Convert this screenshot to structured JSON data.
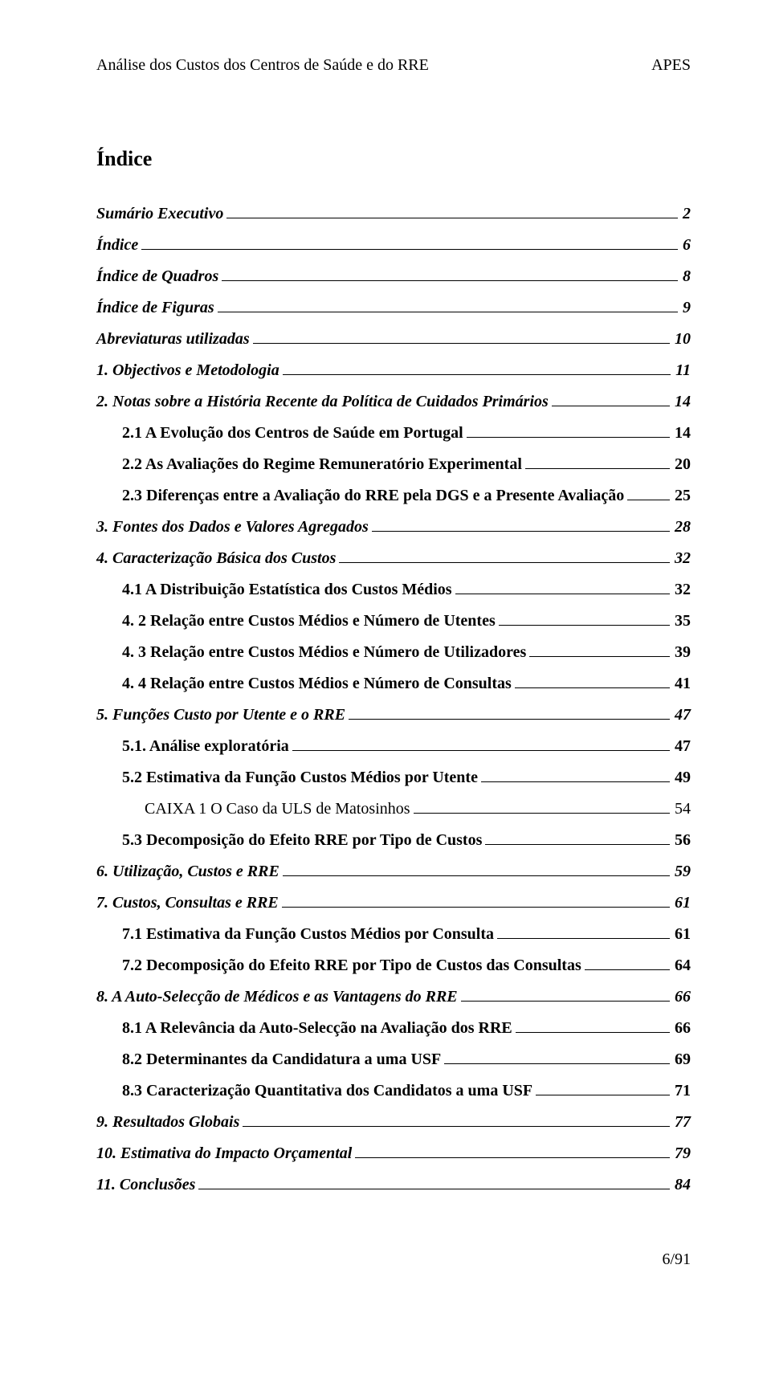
{
  "header": {
    "left": "Análise dos Custos dos Centros de Saúde e do RRE",
    "right": "APES"
  },
  "title": "Índice",
  "toc": [
    {
      "label": "Sumário Executivo",
      "page": "2",
      "style": "bolditalic",
      "indent": 0
    },
    {
      "label": "Índice",
      "page": "6",
      "style": "bolditalic",
      "indent": 0
    },
    {
      "label": "Índice de Quadros",
      "page": "8",
      "style": "bolditalic",
      "indent": 0
    },
    {
      "label": "Índice de Figuras",
      "page": "9",
      "style": "bolditalic",
      "indent": 0
    },
    {
      "label": "Abreviaturas utilizadas",
      "page": "10",
      "style": "bolditalic",
      "indent": 0
    },
    {
      "label": "1. Objectivos e Metodologia",
      "page": "11",
      "style": "bolditalic",
      "indent": 0
    },
    {
      "label": "2. Notas sobre a História Recente da Política de Cuidados Primários",
      "page": "14",
      "style": "bolditalic",
      "indent": 0
    },
    {
      "label": "2.1 A Evolução dos Centros de Saúde em Portugal",
      "page": "14",
      "style": "bold",
      "indent": 1
    },
    {
      "label": "2.2 As Avaliações do Regime Remuneratório Experimental",
      "page": "20",
      "style": "bold",
      "indent": 1
    },
    {
      "label": "2.3 Diferenças entre a Avaliação do RRE pela DGS e a Presente Avaliação",
      "page": "25",
      "style": "bold",
      "indent": 1
    },
    {
      "label": "3. Fontes dos Dados e Valores Agregados",
      "page": "28",
      "style": "bolditalic",
      "indent": 0
    },
    {
      "label": "4. Caracterização Básica dos Custos",
      "page": "32",
      "style": "bolditalic",
      "indent": 0
    },
    {
      "label": "4.1 A Distribuição Estatística dos Custos Médios",
      "page": "32",
      "style": "bold",
      "indent": 1
    },
    {
      "label": "4. 2 Relação entre  Custos Médios e Número de Utentes",
      "page": "35",
      "style": "bold",
      "indent": 1
    },
    {
      "label": "4. 3 Relação entre Custos Médios e Número de Utilizadores",
      "page": "39",
      "style": "bold",
      "indent": 1
    },
    {
      "label": "4. 4 Relação entre Custos Médios e Número de Consultas",
      "page": "41",
      "style": "bold",
      "indent": 1
    },
    {
      "label": "5. Funções Custo por Utente  e o RRE",
      "page": "47",
      "style": "bolditalic",
      "indent": 0
    },
    {
      "label": "5.1. Análise exploratória",
      "page": "47",
      "style": "bold",
      "indent": 1
    },
    {
      "label": "5.2 Estimativa da Função Custos Médios por Utente",
      "page": "49",
      "style": "bold",
      "indent": 1
    },
    {
      "label": "CAIXA 1 O Caso da ULS de Matosinhos",
      "page": "54",
      "style": "plain",
      "indent": 2
    },
    {
      "label": "5.3 Decomposição do Efeito RRE por Tipo de Custos",
      "page": "56",
      "style": "bold",
      "indent": 1
    },
    {
      "label": "6. Utilização,  Custos e RRE",
      "page": "59",
      "style": "bolditalic",
      "indent": 0
    },
    {
      "label": "7. Custos, Consultas e RRE",
      "page": "61",
      "style": "bolditalic",
      "indent": 0
    },
    {
      "label": "7.1 Estimativa da Função Custos Médios por Consulta",
      "page": "61",
      "style": "bold",
      "indent": 1
    },
    {
      "label": "7.2 Decomposição do Efeito RRE por Tipo de Custos das Consultas",
      "page": "64",
      "style": "bold",
      "indent": 1
    },
    {
      "label": "8.  A Auto-Selecção de Médicos e as Vantagens do RRE",
      "page": "66",
      "style": "bolditalic",
      "indent": 0
    },
    {
      "label": "8.1 A Relevância da Auto-Selecção na Avaliação dos RRE",
      "page": "66",
      "style": "bold",
      "indent": 1
    },
    {
      "label": "8.2 Determinantes da Candidatura a uma USF",
      "page": "69",
      "style": "bold",
      "indent": 1
    },
    {
      "label": "8.3 Caracterização Quantitativa dos Candidatos a uma USF",
      "page": "71",
      "style": "bold",
      "indent": 1
    },
    {
      "label": "9.  Resultados Globais",
      "page": "77",
      "style": "bolditalic",
      "indent": 0
    },
    {
      "label": "10.  Estimativa do Impacto Orçamental",
      "page": "79",
      "style": "bolditalic",
      "indent": 0
    },
    {
      "label": "11.  Conclusões",
      "page": "84",
      "style": "bolditalic",
      "indent": 0
    }
  ],
  "footer": "6/91"
}
